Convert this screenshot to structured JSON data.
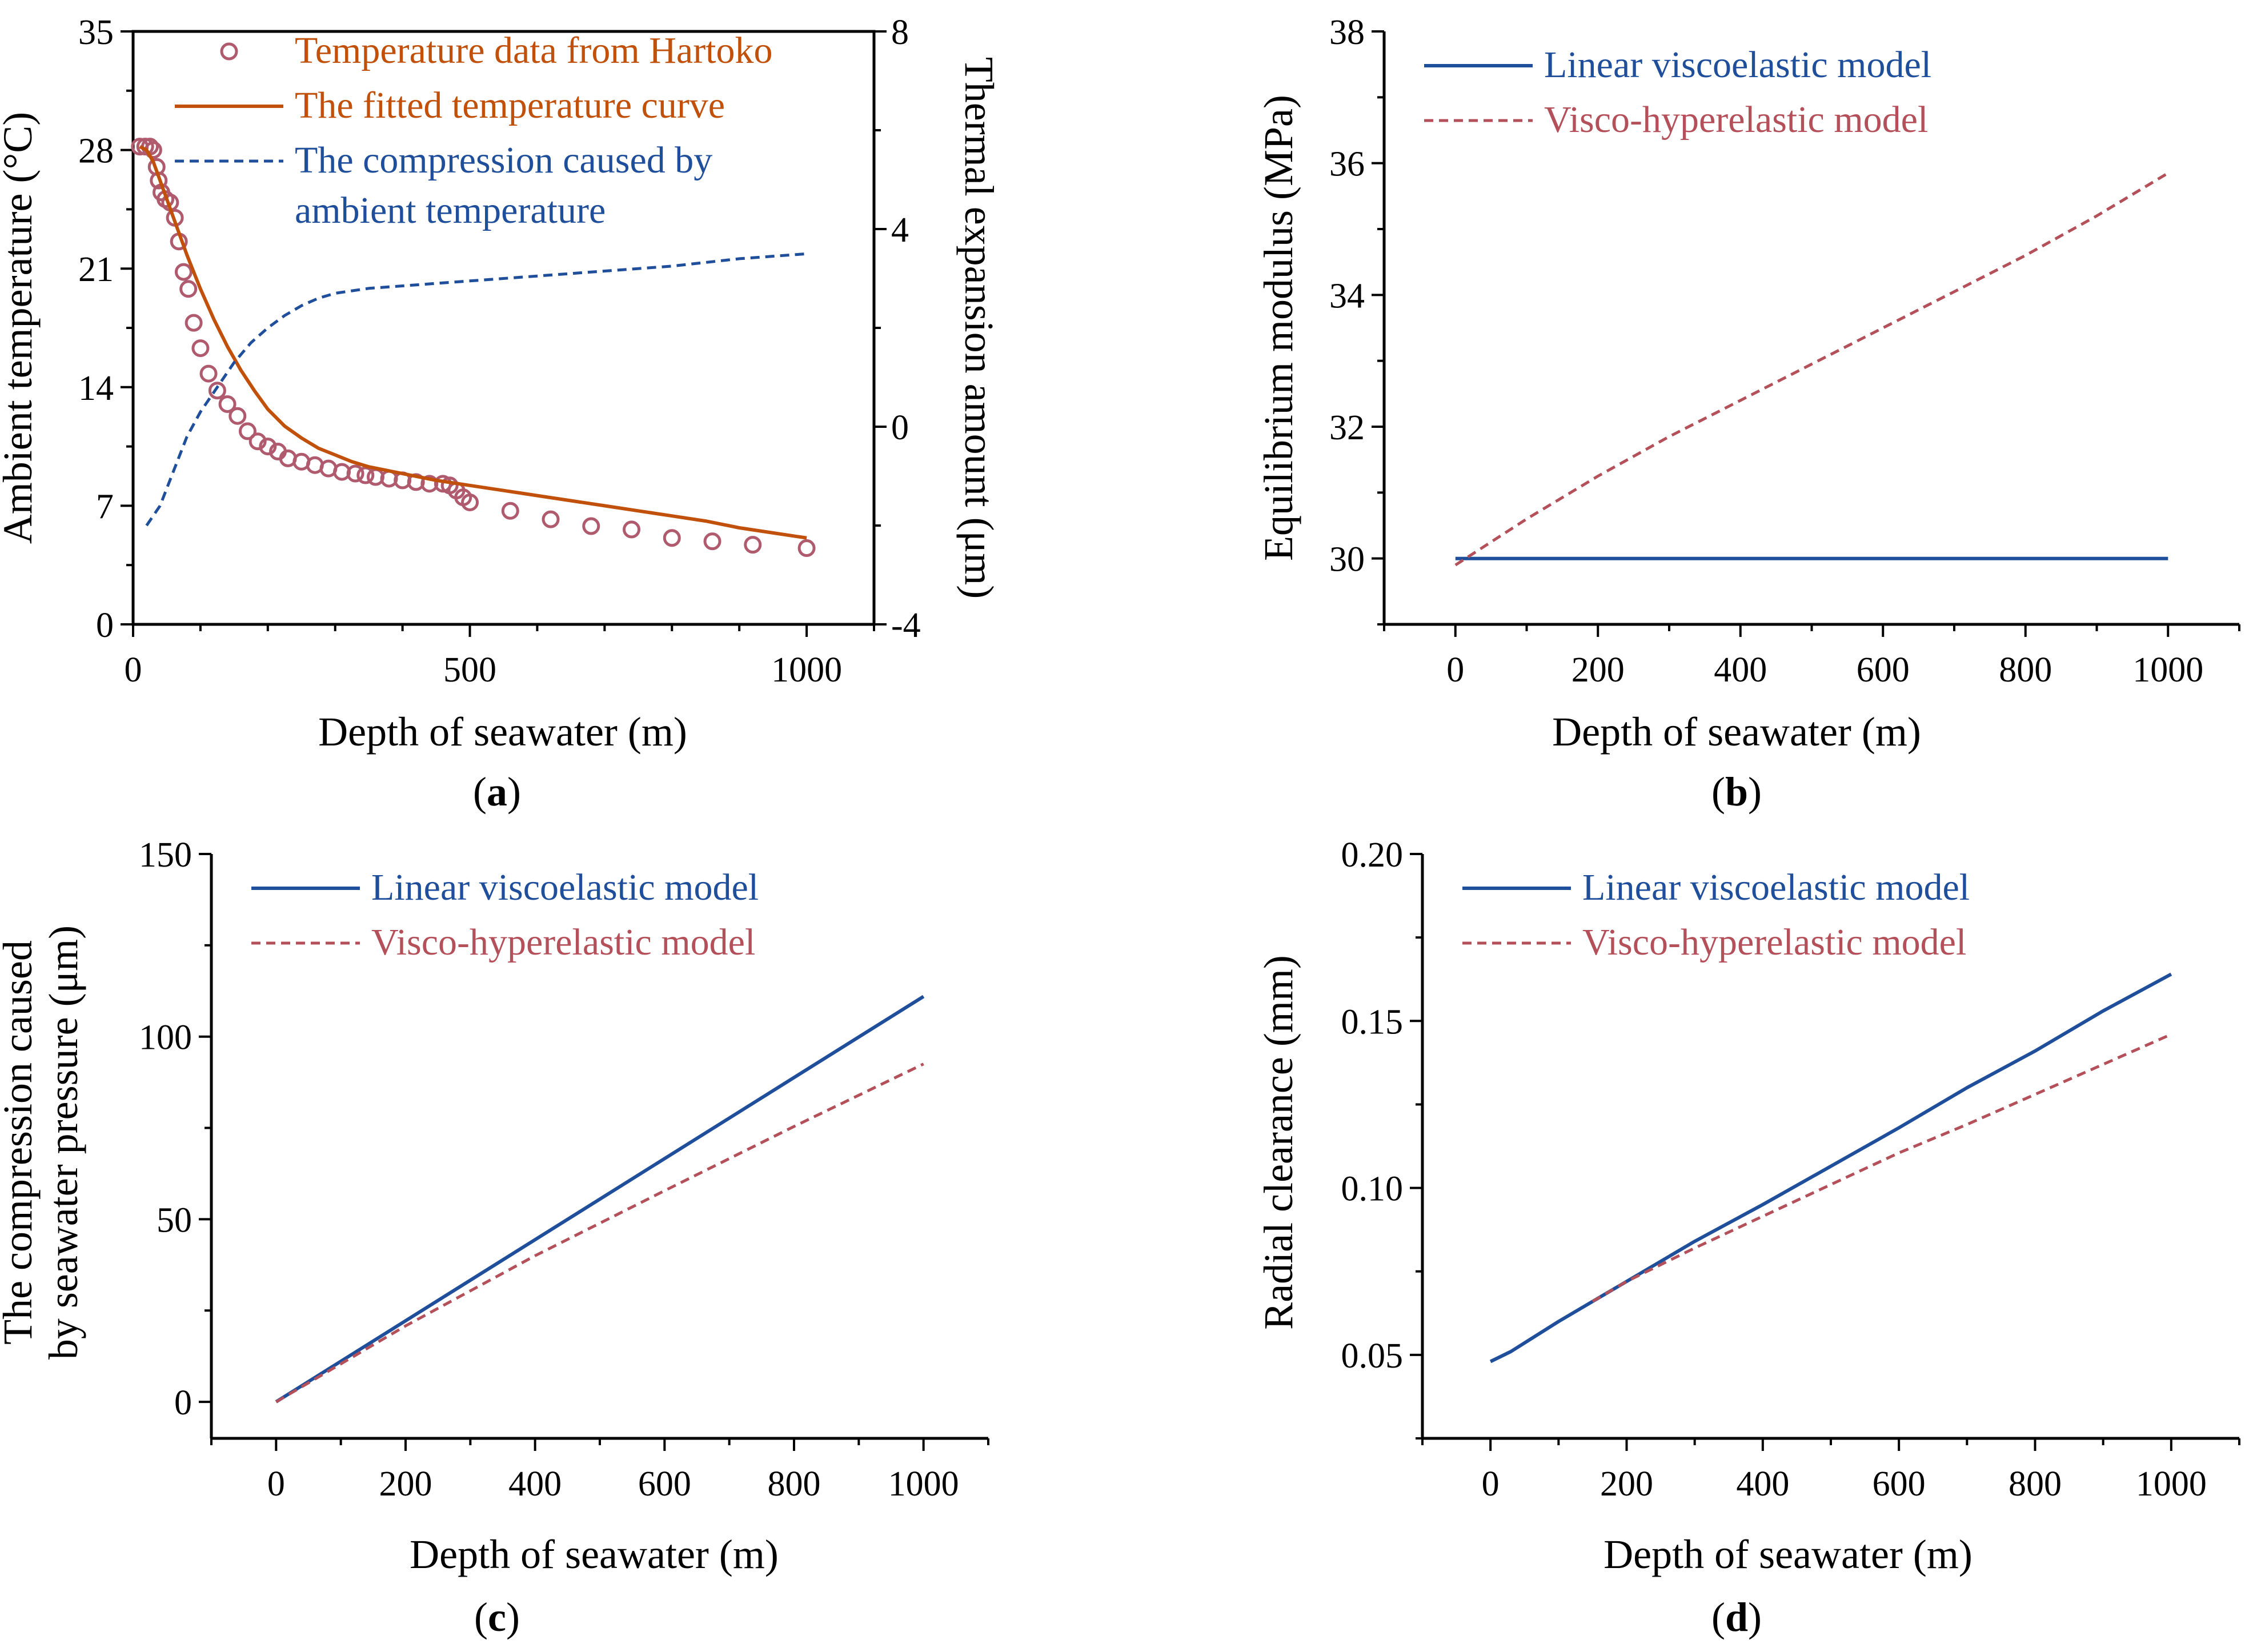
{
  "colors": {
    "orange": "#C0500A",
    "blue": "#1F4E9B",
    "rose": "#B4505A",
    "marker": "#B05A6E",
    "axis": "#000000"
  },
  "chart_data": [
    {
      "id": "a",
      "type": "line",
      "caption": {
        "open": "(",
        "letter": "a",
        "close": ")"
      },
      "xlabel": "Depth of seawater (m)",
      "ylabel": "Ambient temperature (°C)",
      "y2label": "Thermal expansion amount (μm)",
      "xlim": [
        0,
        1100
      ],
      "ylim": [
        0,
        35
      ],
      "y2lim": [
        -4,
        8
      ],
      "xticks": [
        0,
        500,
        1000
      ],
      "yticks": [
        0,
        7,
        14,
        21,
        28,
        35
      ],
      "y2ticks": [
        -4,
        0,
        4,
        8
      ],
      "grid": false,
      "legend_position": "top-right",
      "legend": [
        {
          "label": "Temperature data from Hartoko",
          "style": "circle-markers"
        },
        {
          "label": "The fitted temperature curve",
          "style": "solid-line"
        },
        {
          "label": "The compression caused by",
          "label_line2": "ambient temperature",
          "style": "dashed-line"
        }
      ],
      "series": [
        {
          "name": "Temperature data from Hartoko",
          "style": "scatter",
          "axis": "left",
          "color": "#B05A6E",
          "x": [
            10,
            18,
            25,
            30,
            35,
            38,
            42,
            48,
            55,
            62,
            68,
            75,
            82,
            90,
            100,
            112,
            125,
            140,
            155,
            170,
            185,
            200,
            215,
            230,
            250,
            270,
            290,
            310,
            330,
            345,
            360,
            380,
            400,
            420,
            440,
            460,
            470,
            480,
            490,
            500,
            560,
            620,
            680,
            740,
            800,
            860,
            920,
            1000
          ],
          "y": [
            28.2,
            28.2,
            28.2,
            28.0,
            27.0,
            26.2,
            25.5,
            25.1,
            24.9,
            24.0,
            22.6,
            20.8,
            19.8,
            17.8,
            16.3,
            14.8,
            13.8,
            13.0,
            12.3,
            11.4,
            10.8,
            10.5,
            10.2,
            9.8,
            9.6,
            9.4,
            9.2,
            9.0,
            8.9,
            8.8,
            8.7,
            8.6,
            8.5,
            8.4,
            8.3,
            8.3,
            8.2,
            7.9,
            7.5,
            7.2,
            6.7,
            6.2,
            5.8,
            5.6,
            5.1,
            4.9,
            4.7,
            4.5
          ],
          "x_scale_note": ""
        },
        {
          "name": "The fitted temperature curve",
          "style": "solid",
          "axis": "left",
          "color": "#C0500A",
          "x": [
            10,
            20,
            30,
            40,
            50,
            60,
            70,
            80,
            100,
            120,
            140,
            160,
            180,
            200,
            225,
            250,
            275,
            300,
            325,
            350,
            400,
            450,
            500,
            550,
            600,
            650,
            700,
            750,
            800,
            850,
            900,
            950,
            1000
          ],
          "y": [
            28.2,
            28.0,
            27.3,
            26.2,
            25.1,
            24.0,
            22.9,
            21.8,
            19.8,
            18.0,
            16.4,
            15.0,
            13.8,
            12.7,
            11.7,
            11.0,
            10.4,
            10.0,
            9.6,
            9.3,
            8.9,
            8.5,
            8.2,
            7.9,
            7.6,
            7.3,
            7.0,
            6.7,
            6.4,
            6.1,
            5.7,
            5.4,
            5.1
          ]
        },
        {
          "name": "The compression caused by ambient temperature",
          "style": "dashed",
          "axis": "right",
          "color": "#1F4E9B",
          "x": [
            20,
            40,
            60,
            80,
            100,
            125,
            150,
            175,
            200,
            225,
            250,
            275,
            300,
            350,
            400,
            450,
            500,
            600,
            700,
            800,
            900,
            1000
          ],
          "y": [
            -2.0,
            -1.6,
            -0.9,
            -0.2,
            0.3,
            0.8,
            1.3,
            1.7,
            2.0,
            2.25,
            2.45,
            2.6,
            2.7,
            2.8,
            2.85,
            2.9,
            2.95,
            3.05,
            3.15,
            3.25,
            3.4,
            3.5
          ]
        }
      ]
    },
    {
      "id": "b",
      "type": "line",
      "caption": {
        "open": "(",
        "letter": "b",
        "close": ")"
      },
      "xlabel": "Depth of seawater (m)",
      "ylabel": "Equilibrium modulus (MPa)",
      "xlim": [
        -100,
        1100
      ],
      "ylim": [
        29,
        38
      ],
      "xticks": [
        0,
        200,
        400,
        600,
        800,
        1000
      ],
      "yticks": [
        30,
        32,
        34,
        36,
        38
      ],
      "grid": false,
      "legend_position": "top-left",
      "legend": [
        {
          "label": "Linear viscoelastic model",
          "style": "solid-line"
        },
        {
          "label": "Visco-hyperelastic model",
          "style": "dashed-line"
        }
      ],
      "series": [
        {
          "name": "Linear viscoelastic model",
          "style": "solid",
          "color": "#1F4E9B",
          "x": [
            0,
            1000
          ],
          "y": [
            30.0,
            30.0
          ]
        },
        {
          "name": "Visco-hyperelastic model",
          "style": "dashed",
          "color": "#B4505A",
          "x": [
            0,
            100,
            200,
            300,
            400,
            500,
            600,
            700,
            800,
            900,
            1000
          ],
          "y": [
            29.9,
            30.6,
            31.25,
            31.85,
            32.4,
            32.95,
            33.5,
            34.05,
            34.6,
            35.2,
            35.85
          ]
        }
      ]
    },
    {
      "id": "c",
      "type": "line",
      "caption": {
        "open": "(",
        "letter": "c",
        "close": ")"
      },
      "xlabel": "Depth of seawater (m)",
      "ylabel": "The compression caused",
      "ylabel_line2": "by seawater pressure (μm)",
      "xlim": [
        -100,
        1100
      ],
      "ylim": [
        -10,
        150
      ],
      "xticks": [
        0,
        200,
        400,
        600,
        800,
        1000
      ],
      "yticks": [
        0,
        50,
        100,
        150
      ],
      "grid": false,
      "legend_position": "top-left",
      "legend": [
        {
          "label": "Linear viscoelastic model",
          "style": "solid-line"
        },
        {
          "label": "Visco-hyperelastic model",
          "style": "dashed-line"
        }
      ],
      "series": [
        {
          "name": "Linear viscoelastic model",
          "style": "solid",
          "color": "#1F4E9B",
          "x": [
            0,
            1000
          ],
          "y": [
            0,
            111
          ]
        },
        {
          "name": "Visco-hyperelastic model",
          "style": "dashed",
          "color": "#B4505A",
          "x": [
            0,
            200,
            400,
            600,
            800,
            1000
          ],
          "y": [
            0,
            20.8,
            40.0,
            57.8,
            75.4,
            92.5
          ]
        }
      ]
    },
    {
      "id": "d",
      "type": "line",
      "caption": {
        "open": "(",
        "letter": "d",
        "close": ")"
      },
      "xlabel": "Depth of seawater (m)",
      "ylabel": "Radial clearance (mm)",
      "xlim": [
        -100,
        1100
      ],
      "ylim": [
        0.025,
        0.2
      ],
      "xticks": [
        0,
        200,
        400,
        600,
        800,
        1000
      ],
      "yticks": [
        0.05,
        0.1,
        0.15,
        0.2
      ],
      "ytick_labels": [
        "0.05",
        "0.10",
        "0.15",
        "0.20"
      ],
      "grid": false,
      "legend_position": "top-left",
      "legend": [
        {
          "label": "Linear viscoelastic model",
          "style": "solid-line"
        },
        {
          "label": "Visco-hyperelastic model",
          "style": "dashed-line"
        }
      ],
      "series": [
        {
          "name": "Linear viscoelastic model",
          "style": "solid",
          "color": "#1F4E9B",
          "x": [
            0,
            30,
            100,
            200,
            300,
            400,
            500,
            600,
            700,
            800,
            900,
            1000
          ],
          "y": [
            0.048,
            0.051,
            0.06,
            0.072,
            0.084,
            0.095,
            0.1065,
            0.118,
            0.13,
            0.141,
            0.153,
            0.164
          ]
        },
        {
          "name": "Visco-hyperelastic model",
          "style": "dashed",
          "color": "#B4505A",
          "x": [
            150,
            200,
            300,
            400,
            500,
            600,
            700,
            800,
            900,
            1000
          ],
          "y": [
            0.066,
            0.072,
            0.082,
            0.0915,
            0.101,
            0.1105,
            0.119,
            0.128,
            0.137,
            0.146
          ]
        }
      ]
    }
  ]
}
